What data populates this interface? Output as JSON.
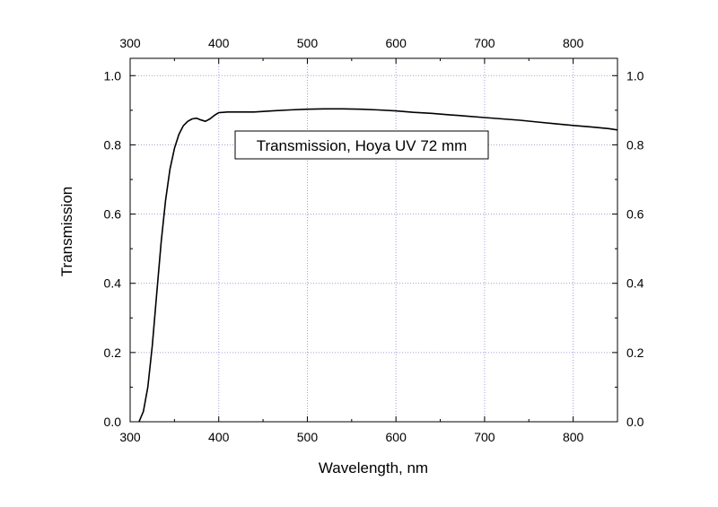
{
  "chart_data": {
    "type": "line",
    "title": "",
    "legend_text": "Transmission, Hoya UV 72 mm",
    "xlabel": "Wavelength, nm",
    "ylabel": "Transmission",
    "xlim": [
      300,
      850
    ],
    "ylim": [
      0.0,
      1.05
    ],
    "x_ticks": [
      300,
      400,
      500,
      600,
      700,
      800
    ],
    "y_ticks": [
      "0.0",
      "0.2",
      "0.4",
      "0.6",
      "0.8",
      "1.0"
    ],
    "grid": true,
    "legend_position": "top-center",
    "series": [
      {
        "color": "#000000",
        "x": [
          310,
          315,
          320,
          325,
          330,
          335,
          340,
          345,
          350,
          355,
          360,
          365,
          370,
          375,
          380,
          385,
          390,
          395,
          400,
          410,
          420,
          440,
          460,
          480,
          500,
          520,
          540,
          560,
          580,
          600,
          620,
          640,
          660,
          680,
          700,
          720,
          740,
          760,
          780,
          800,
          820,
          840,
          850
        ],
        "y": [
          0.0,
          0.03,
          0.1,
          0.22,
          0.37,
          0.52,
          0.64,
          0.73,
          0.79,
          0.83,
          0.855,
          0.868,
          0.875,
          0.877,
          0.872,
          0.868,
          0.875,
          0.885,
          0.893,
          0.895,
          0.895,
          0.895,
          0.898,
          0.901,
          0.903,
          0.904,
          0.904,
          0.903,
          0.901,
          0.898,
          0.894,
          0.891,
          0.887,
          0.883,
          0.879,
          0.875,
          0.871,
          0.866,
          0.861,
          0.856,
          0.852,
          0.847,
          0.843
        ]
      }
    ]
  }
}
